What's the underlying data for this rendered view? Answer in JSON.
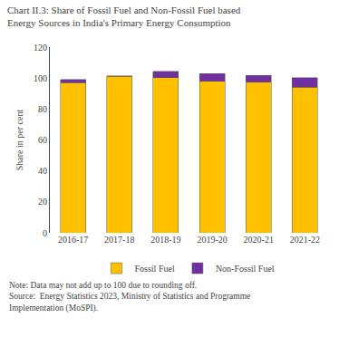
{
  "chart_data": {
    "type": "bar",
    "stacked": true,
    "title": "Chart II.3: Share of Fossil Fuel and Non-Fossil Fuel based\nEnergy Sources in India's Primary Energy Consumption",
    "categories": [
      "2016-17",
      "2017-18",
      "2018-19",
      "2019-20",
      "2020-21",
      "2021-22"
    ],
    "series": [
      {
        "name": "Fossil Fuel",
        "color": "#FFC000",
        "values": [
          97.1,
          101.0,
          100.2,
          97.9,
          97.2,
          94.1
        ]
      },
      {
        "name": "Non-Fossil Fuel",
        "color": "#7030A0",
        "values": [
          2.0,
          0.3,
          4.0,
          4.9,
          4.6,
          6.1
        ]
      }
    ],
    "ylabel": "Share in per cent",
    "ylim": [
      0,
      120
    ],
    "yticks": [
      0,
      20,
      40,
      60,
      80,
      100,
      120
    ],
    "grid": false,
    "legend": "bottom",
    "annotations": [
      "Note: Data may not add up to 100 due to rounding off.",
      "Source:  Energy Statistics 2023, Ministry of Statistics and Programme",
      "Implementation (MoSPI)."
    ]
  }
}
